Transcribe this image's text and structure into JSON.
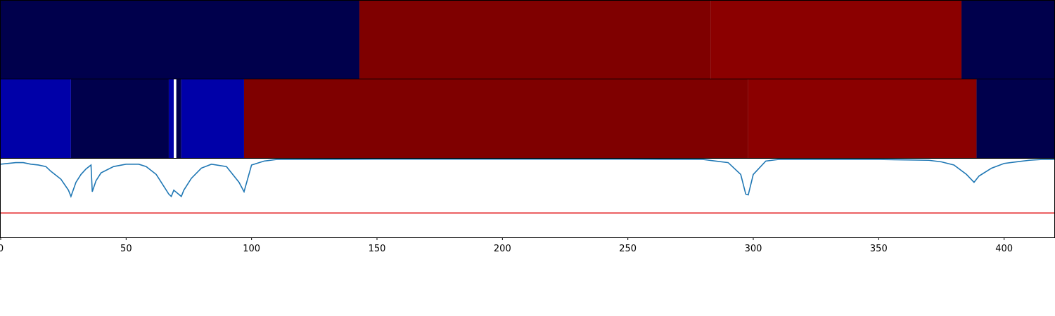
{
  "chart_data": {
    "type": "heatmap",
    "title": "",
    "xlabel": "",
    "ylabel": "",
    "xlim": [
      0,
      420
    ],
    "grid": false,
    "x_ticks": [
      0,
      50,
      100,
      150,
      200,
      250,
      300,
      350,
      400
    ],
    "x_tick_labels": [
      "0",
      "50",
      "100",
      "150",
      "200",
      "250",
      "300",
      "350",
      "400"
    ],
    "rows": [
      {
        "segments": [
          {
            "start": 0,
            "end": 143,
            "color": "#00004c"
          },
          {
            "start": 143,
            "end": 283,
            "color": "#7f0000"
          },
          {
            "start": 283,
            "end": 383,
            "color": "#8b0000"
          },
          {
            "start": 383,
            "end": 420,
            "color": "#00004c"
          }
        ]
      },
      {
        "segments": [
          {
            "start": 0,
            "end": 28,
            "color": "#0000a8"
          },
          {
            "start": 28,
            "end": 67,
            "color": "#00004c"
          },
          {
            "start": 67,
            "end": 69,
            "color": "#0000a8"
          },
          {
            "start": 69,
            "end": 70,
            "color": "#ffffff"
          },
          {
            "start": 70,
            "end": 72,
            "color": "#00004c"
          },
          {
            "start": 72,
            "end": 97,
            "color": "#0000a8"
          },
          {
            "start": 97,
            "end": 298,
            "color": "#7f0000"
          },
          {
            "start": 298,
            "end": 389,
            "color": "#8b0000"
          },
          {
            "start": 389,
            "end": 420,
            "color": "#00004c"
          }
        ]
      }
    ],
    "line_panel": {
      "ylim": [
        0,
        1
      ],
      "series": [
        {
          "color": "#1f77b4",
          "x": [
            0,
            3,
            6,
            9,
            12,
            15,
            18,
            20,
            24,
            27,
            28,
            30,
            32,
            34,
            36,
            36.5,
            38,
            40,
            45,
            50,
            55,
            58,
            62,
            65,
            67,
            68,
            69,
            72,
            73,
            76,
            80,
            84,
            90,
            95,
            97,
            100,
            105,
            110,
            150,
            200,
            250,
            280,
            290,
            295,
            297,
            298,
            300,
            305,
            310,
            350,
            370,
            375,
            380,
            385,
            388,
            390,
            395,
            400,
            405,
            410,
            415,
            420
          ],
          "y": [
            0.93,
            0.94,
            0.95,
            0.95,
            0.93,
            0.92,
            0.9,
            0.84,
            0.74,
            0.6,
            0.52,
            0.7,
            0.8,
            0.87,
            0.92,
            0.58,
            0.72,
            0.82,
            0.9,
            0.93,
            0.93,
            0.9,
            0.8,
            0.65,
            0.55,
            0.52,
            0.6,
            0.52,
            0.6,
            0.75,
            0.88,
            0.93,
            0.9,
            0.7,
            0.58,
            0.92,
            0.97,
            0.99,
            0.995,
            0.995,
            0.995,
            0.99,
            0.95,
            0.8,
            0.55,
            0.54,
            0.8,
            0.97,
            0.99,
            0.99,
            0.98,
            0.96,
            0.92,
            0.8,
            0.7,
            0.78,
            0.88,
            0.94,
            0.96,
            0.98,
            0.99,
            0.99
          ]
        }
      ],
      "threshold": {
        "y": 0.31,
        "color": "#e31a1c"
      }
    }
  }
}
